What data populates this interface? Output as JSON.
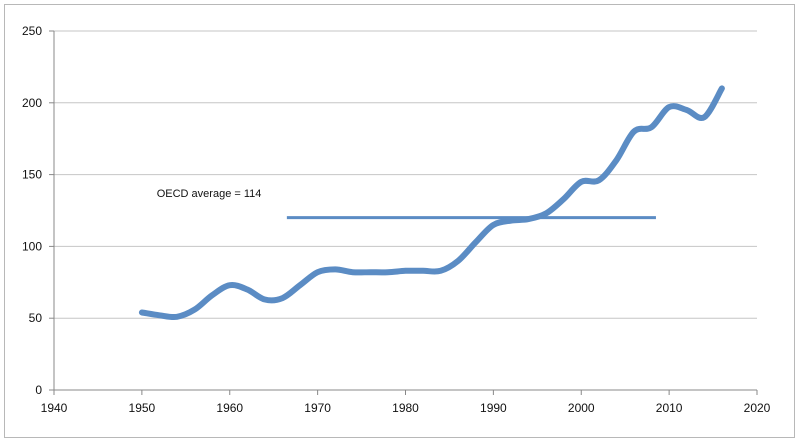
{
  "chart_data": {
    "type": "line",
    "title": "",
    "xlabel": "",
    "ylabel": "",
    "xlim": [
      1940,
      2020
    ],
    "ylim": [
      0,
      250
    ],
    "xticks": [
      1940,
      1950,
      1960,
      1970,
      1980,
      1990,
      2000,
      2010,
      2020
    ],
    "yticks": [
      0,
      50,
      100,
      150,
      200,
      250
    ],
    "grid": "horizontal",
    "legend": "none",
    "colors": {
      "series": "#5b8cc4",
      "grid": "#c6c6c6",
      "axis": "#888888"
    },
    "series": [
      {
        "x": [
          1950,
          1952,
          1954,
          1956,
          1958,
          1960,
          1962,
          1964,
          1966,
          1968,
          1970,
          1972,
          1974,
          1976,
          1978,
          1980,
          1982,
          1984,
          1986,
          1988,
          1990,
          1992,
          1994,
          1996,
          1998,
          2000,
          2002,
          2004,
          2006,
          2008,
          2010,
          2012,
          2014,
          2016
        ],
        "y": [
          54,
          52,
          51,
          56,
          66,
          73,
          70,
          63,
          64,
          73,
          82,
          84,
          82,
          82,
          82,
          83,
          83,
          83,
          90,
          103,
          115,
          118,
          119,
          123,
          133,
          145,
          146,
          160,
          180,
          183,
          197,
          195,
          190,
          210
        ]
      }
    ],
    "reference_line": {
      "y": 120,
      "x_start": 1966.5,
      "x_end": 2008.5,
      "color": "#5b8cc4"
    },
    "annotations": [
      {
        "text": "OECD average = 114",
        "x": 1946,
        "y": 131
      }
    ]
  }
}
